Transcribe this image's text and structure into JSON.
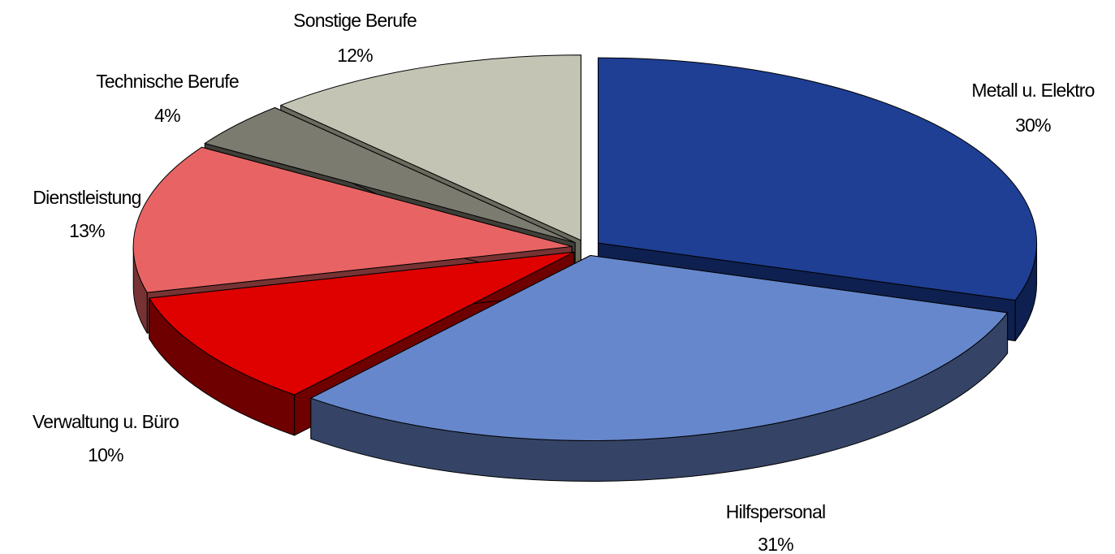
{
  "chart_data": {
    "type": "pie",
    "style": "3d-exploded",
    "title": "",
    "slices": [
      {
        "label": "Metall u. Elektro",
        "pct_label": "30%",
        "value": 30,
        "color": "#1f3f94",
        "side_color": "#0e2050"
      },
      {
        "label": "Hilfspersonal",
        "pct_label": "31%",
        "value": 31,
        "color": "#6687cc",
        "side_color": "#354466"
      },
      {
        "label": "Verwaltung u. Büro",
        "pct_label": "10%",
        "value": 10,
        "color": "#df0000",
        "side_color": "#6e0000"
      },
      {
        "label": "Dienstleistung",
        "pct_label": "13%",
        "value": 13,
        "color": "#e86464",
        "side_color": "#773333"
      },
      {
        "label": "Technische Berufe",
        "pct_label": "4%",
        "value": 4,
        "color": "#7c7b70",
        "side_color": "#3f3e38"
      },
      {
        "label": "Sonstige Berufe",
        "pct_label": "12%",
        "value": 12,
        "color": "#c4c4b5",
        "side_color": "#6a6a5e"
      }
    ]
  }
}
